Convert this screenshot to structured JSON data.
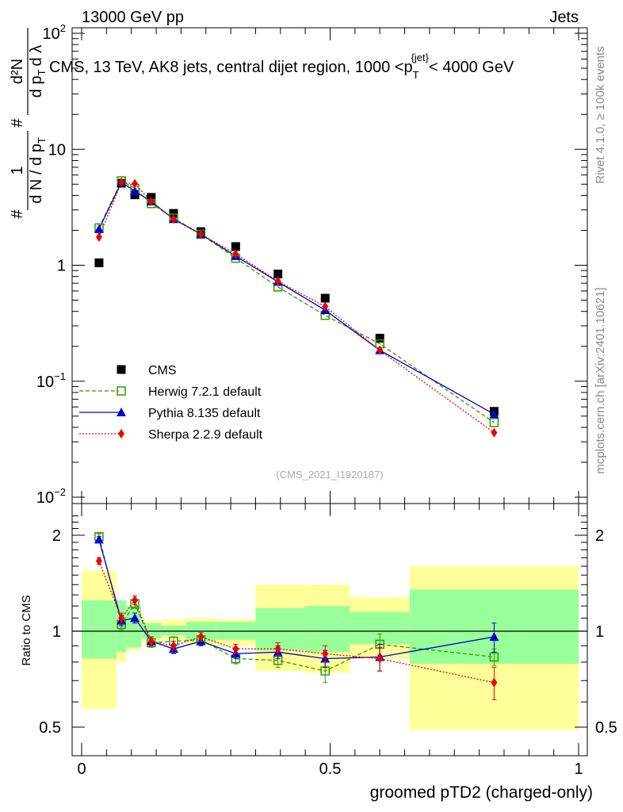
{
  "header": {
    "left": "13000 GeV pp",
    "right": "Jets"
  },
  "title": "CMS, 13 TeV, AK8 jets, central dijet region, 1000 <p",
  "title_sub": "T",
  "title_sup": "{jet}",
  "title_tail": "< 4000 GeV",
  "side_labels": {
    "rivet": "Rivet 4.1.0, ≥ 100k events",
    "mcplots": "mcplots.cern.ch [arXiv:2401.10621]"
  },
  "analysis_id": "(CMS_2021_I1920187)",
  "ylabel_main": {
    "frac_left_num": "1",
    "frac_left_den": "d N / d p",
    "frac_left_den_sub": "T",
    "frac_right_num": "d²N",
    "frac_right_den": "d p",
    "frac_right_den_sub": "T",
    "frac_right_den_tail": "d λ",
    "hash": "#"
  },
  "ylabel_ratio": "Ratio to CMS",
  "xlabel": "groomed pTD2 (charged-only)",
  "chart_data": [
    {
      "type": "scatter",
      "panel": "main",
      "yscale": "log",
      "xlim": [
        0,
        1
      ],
      "ylim": [
        0.01,
        100
      ],
      "y_ticks": [
        {
          "label_base": "10",
          "label_exp": "2",
          "value": 100
        },
        {
          "label": "10",
          "value": 10
        },
        {
          "label": "1",
          "value": 1
        },
        {
          "label_base": "10",
          "label_exp": "−1",
          "value": 0.1
        },
        {
          "label_base": "10",
          "label_exp": "−2",
          "value": 0.01
        }
      ],
      "x_ticks": [
        {
          "label": "0",
          "value": 0
        },
        {
          "label": "0.5",
          "value": 0.5
        },
        {
          "label": "1",
          "value": 1
        }
      ],
      "x": [
        0.035,
        0.08,
        0.107,
        0.14,
        0.185,
        0.24,
        0.31,
        0.395,
        0.49,
        0.6,
        0.83
      ],
      "series": [
        {
          "name": "CMS",
          "color": "#000000",
          "marker": "square",
          "values": [
            1.05,
            5.1,
            4.05,
            3.85,
            2.8,
            1.95,
            1.45,
            0.84,
            0.52,
            0.235,
            0.055
          ]
        },
        {
          "name": "Herwig 7.2.1 default",
          "color": "#339900",
          "marker": "open-square",
          "line": "dashed",
          "values": [
            2.1,
            5.35,
            4.6,
            3.4,
            2.55,
            1.85,
            1.15,
            0.65,
            0.37,
            0.21,
            0.044
          ]
        },
        {
          "name": "Pythia 8.135 default",
          "color": "#0000cc",
          "marker": "triangle",
          "line": "solid",
          "values": [
            2.05,
            5.2,
            4.35,
            3.55,
            2.5,
            1.85,
            1.2,
            0.72,
            0.41,
            0.185,
            0.052
          ]
        },
        {
          "name": "Sherpa 2.2.9 default",
          "color": "#ee0000",
          "marker": "diamond",
          "line": "dotted",
          "values": [
            1.75,
            5.2,
            5.05,
            3.55,
            2.5,
            1.85,
            1.25,
            0.73,
            0.44,
            0.185,
            0.036
          ]
        }
      ],
      "legend": {
        "position": "bottom-left",
        "entries": [
          "CMS",
          "Herwig 7.2.1 default",
          "Pythia 8.135 default",
          "Sherpa 2.2.9 default"
        ]
      }
    },
    {
      "type": "scatter",
      "panel": "ratio",
      "yscale": "log",
      "xlim": [
        0,
        1
      ],
      "ylim": [
        0.4,
        2.4
      ],
      "y_ticks": [
        {
          "label": "2",
          "value": 2
        },
        {
          "label": "1",
          "value": 1
        },
        {
          "label": "0.5",
          "value": 0.5
        }
      ],
      "reference_line": 1,
      "bin_edges": [
        0,
        0.07,
        0.09,
        0.12,
        0.16,
        0.21,
        0.27,
        0.35,
        0.45,
        0.54,
        0.66,
        1.0
      ],
      "band_inner": [
        [
          0.82,
          1.25
        ],
        [
          0.86,
          1.25
        ],
        [
          0.89,
          1.2
        ],
        [
          0.95,
          1.06
        ],
        [
          0.97,
          1.04
        ],
        [
          0.93,
          1.07
        ],
        [
          0.94,
          1.07
        ],
        [
          0.87,
          1.18
        ],
        [
          0.86,
          1.2
        ],
        [
          0.91,
          1.15
        ],
        [
          0.79,
          1.35
        ]
      ],
      "band_outer": [
        [
          0.57,
          1.55
        ],
        [
          0.8,
          1.25
        ],
        [
          0.87,
          1.2
        ],
        [
          0.92,
          1.08
        ],
        [
          0.94,
          1.09
        ],
        [
          0.9,
          1.1
        ],
        [
          0.9,
          1.09
        ],
        [
          0.75,
          1.4
        ],
        [
          0.74,
          1.4
        ],
        [
          0.82,
          1.28
        ],
        [
          0.49,
          1.6
        ]
      ],
      "x": [
        0.035,
        0.08,
        0.107,
        0.14,
        0.185,
        0.24,
        0.31,
        0.395,
        0.49,
        0.6,
        0.83
      ],
      "series": [
        {
          "name": "Herwig 7.2.1 default",
          "color": "#339900",
          "marker": "open-square",
          "line": "dashed",
          "values": [
            1.98,
            1.05,
            1.22,
            0.92,
            0.93,
            0.94,
            0.82,
            0.81,
            0.75,
            0.91,
            0.83
          ],
          "errors": [
            0.04,
            0.04,
            0.04,
            0.03,
            0.03,
            0.03,
            0.03,
            0.04,
            0.06,
            0.07,
            0.05
          ]
        },
        {
          "name": "Pythia 8.135 default",
          "color": "#0000cc",
          "marker": "triangle",
          "line": "solid",
          "values": [
            1.94,
            1.08,
            1.1,
            0.93,
            0.88,
            0.93,
            0.85,
            0.86,
            0.82,
            0.83,
            0.96
          ],
          "errors": [
            0.04,
            0.04,
            0.04,
            0.03,
            0.03,
            0.03,
            0.03,
            0.04,
            0.05,
            0.08,
            0.1
          ]
        },
        {
          "name": "Sherpa 2.2.9 default",
          "color": "#ee0000",
          "marker": "diamond",
          "line": "dotted",
          "values": [
            1.66,
            1.1,
            1.25,
            0.93,
            0.9,
            0.96,
            0.88,
            0.88,
            0.85,
            0.82,
            0.69
          ],
          "errors": [
            0.04,
            0.04,
            0.04,
            0.03,
            0.03,
            0.03,
            0.03,
            0.04,
            0.05,
            0.07,
            0.08
          ]
        }
      ]
    }
  ]
}
